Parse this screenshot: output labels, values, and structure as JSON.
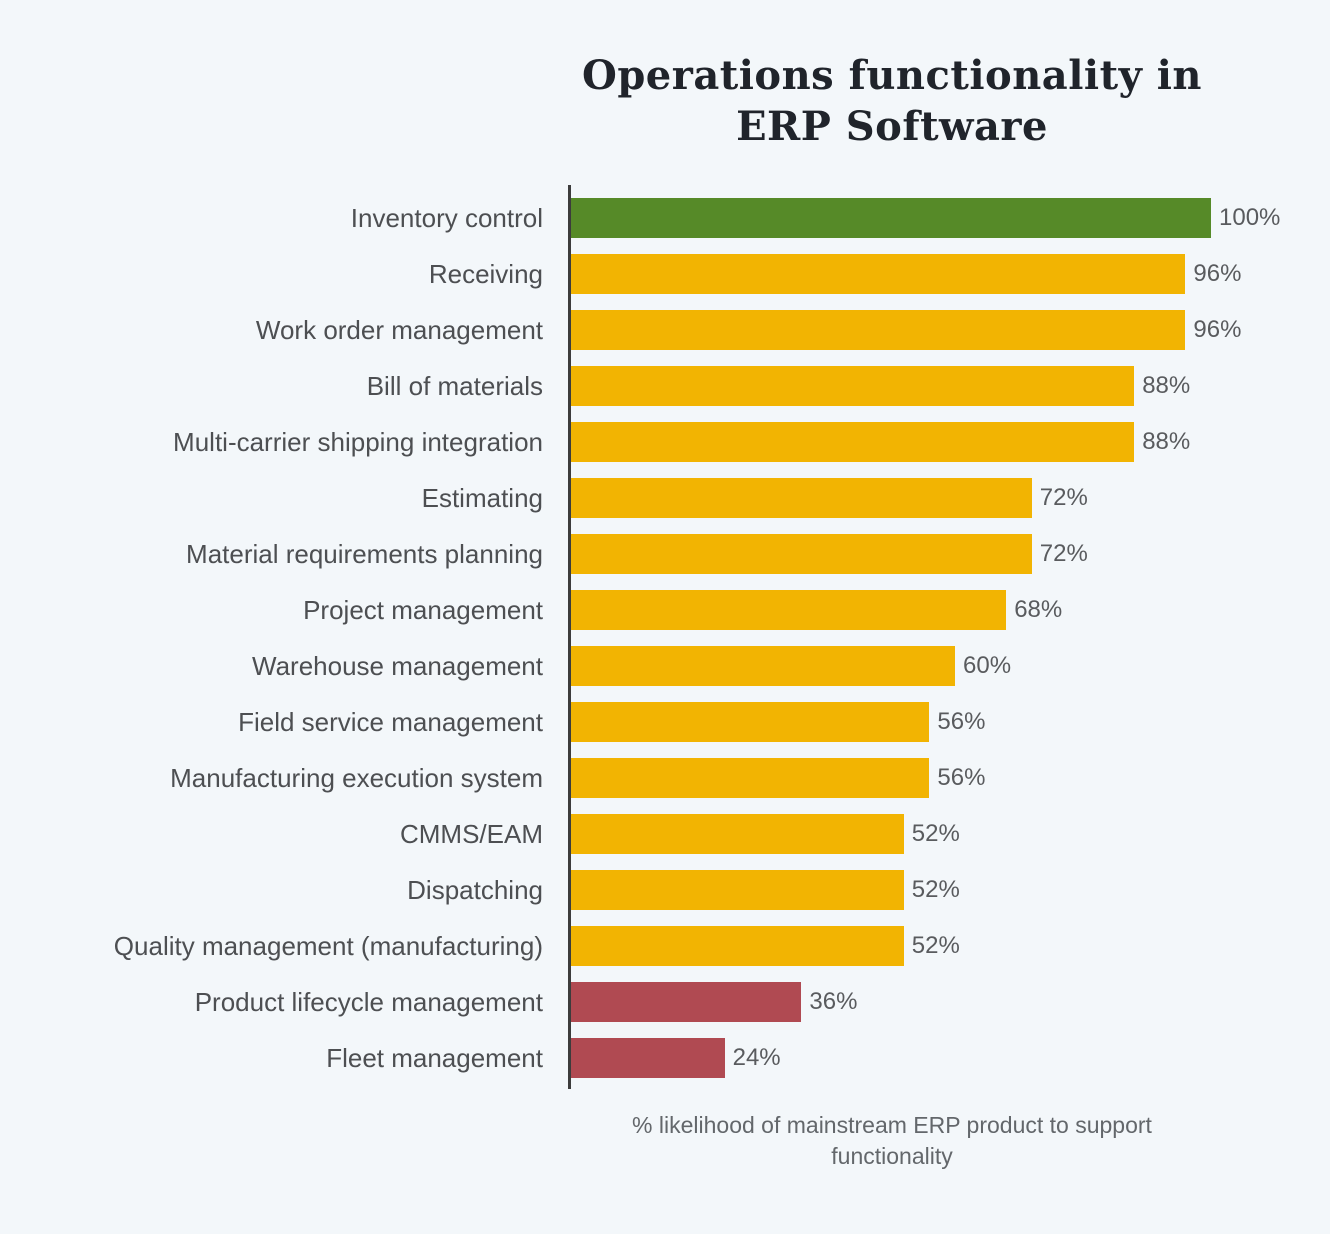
{
  "chart_data": {
    "type": "bar",
    "orientation": "horizontal",
    "title": "Operations functionality in ERP Software",
    "title_lines": [
      "Operations functionality in",
      "ERP Software"
    ],
    "xlabel": "% likelihood of mainstream ERP product to support functionality",
    "xlim": [
      0,
      100
    ],
    "grid": false,
    "legend": false,
    "value_label_position": "outside-end",
    "categories": [
      "Inventory control",
      "Receiving",
      "Work order management",
      "Bill of materials",
      "Multi-carrier shipping integration",
      "Estimating",
      "Material requirements planning",
      "Project management",
      "Warehouse management",
      "Field service management",
      "Manufacturing execution system",
      "CMMS/EAM",
      "Dispatching",
      "Quality management (manufacturing)",
      "Product lifecycle management",
      "Fleet management"
    ],
    "values": [
      100,
      96,
      96,
      88,
      88,
      72,
      72,
      68,
      60,
      56,
      56,
      52,
      52,
      52,
      36,
      24
    ],
    "value_labels": [
      "100%",
      "96%",
      "96%",
      "88%",
      "88%",
      "72%",
      "72%",
      "68%",
      "60%",
      "56%",
      "56%",
      "52%",
      "52%",
      "52%",
      "36%",
      "24%"
    ],
    "bar_colors": [
      "#568a28",
      "#f2b402",
      "#f2b402",
      "#f2b402",
      "#f2b402",
      "#f2b402",
      "#f2b402",
      "#f2b402",
      "#f2b402",
      "#f2b402",
      "#f2b402",
      "#f2b402",
      "#f2b402",
      "#f2b402",
      "#b04a52",
      "#b04a52"
    ],
    "colors": {
      "green": "#568a28",
      "yellow": "#f2b402",
      "red": "#b04a52",
      "background": "#f3f7fa",
      "axis_line": "#3c3c3c",
      "title_text": "#20242b",
      "category_label_text": "#4d4f52",
      "value_label_text": "#595b5e",
      "caption_text": "#63676b"
    }
  }
}
